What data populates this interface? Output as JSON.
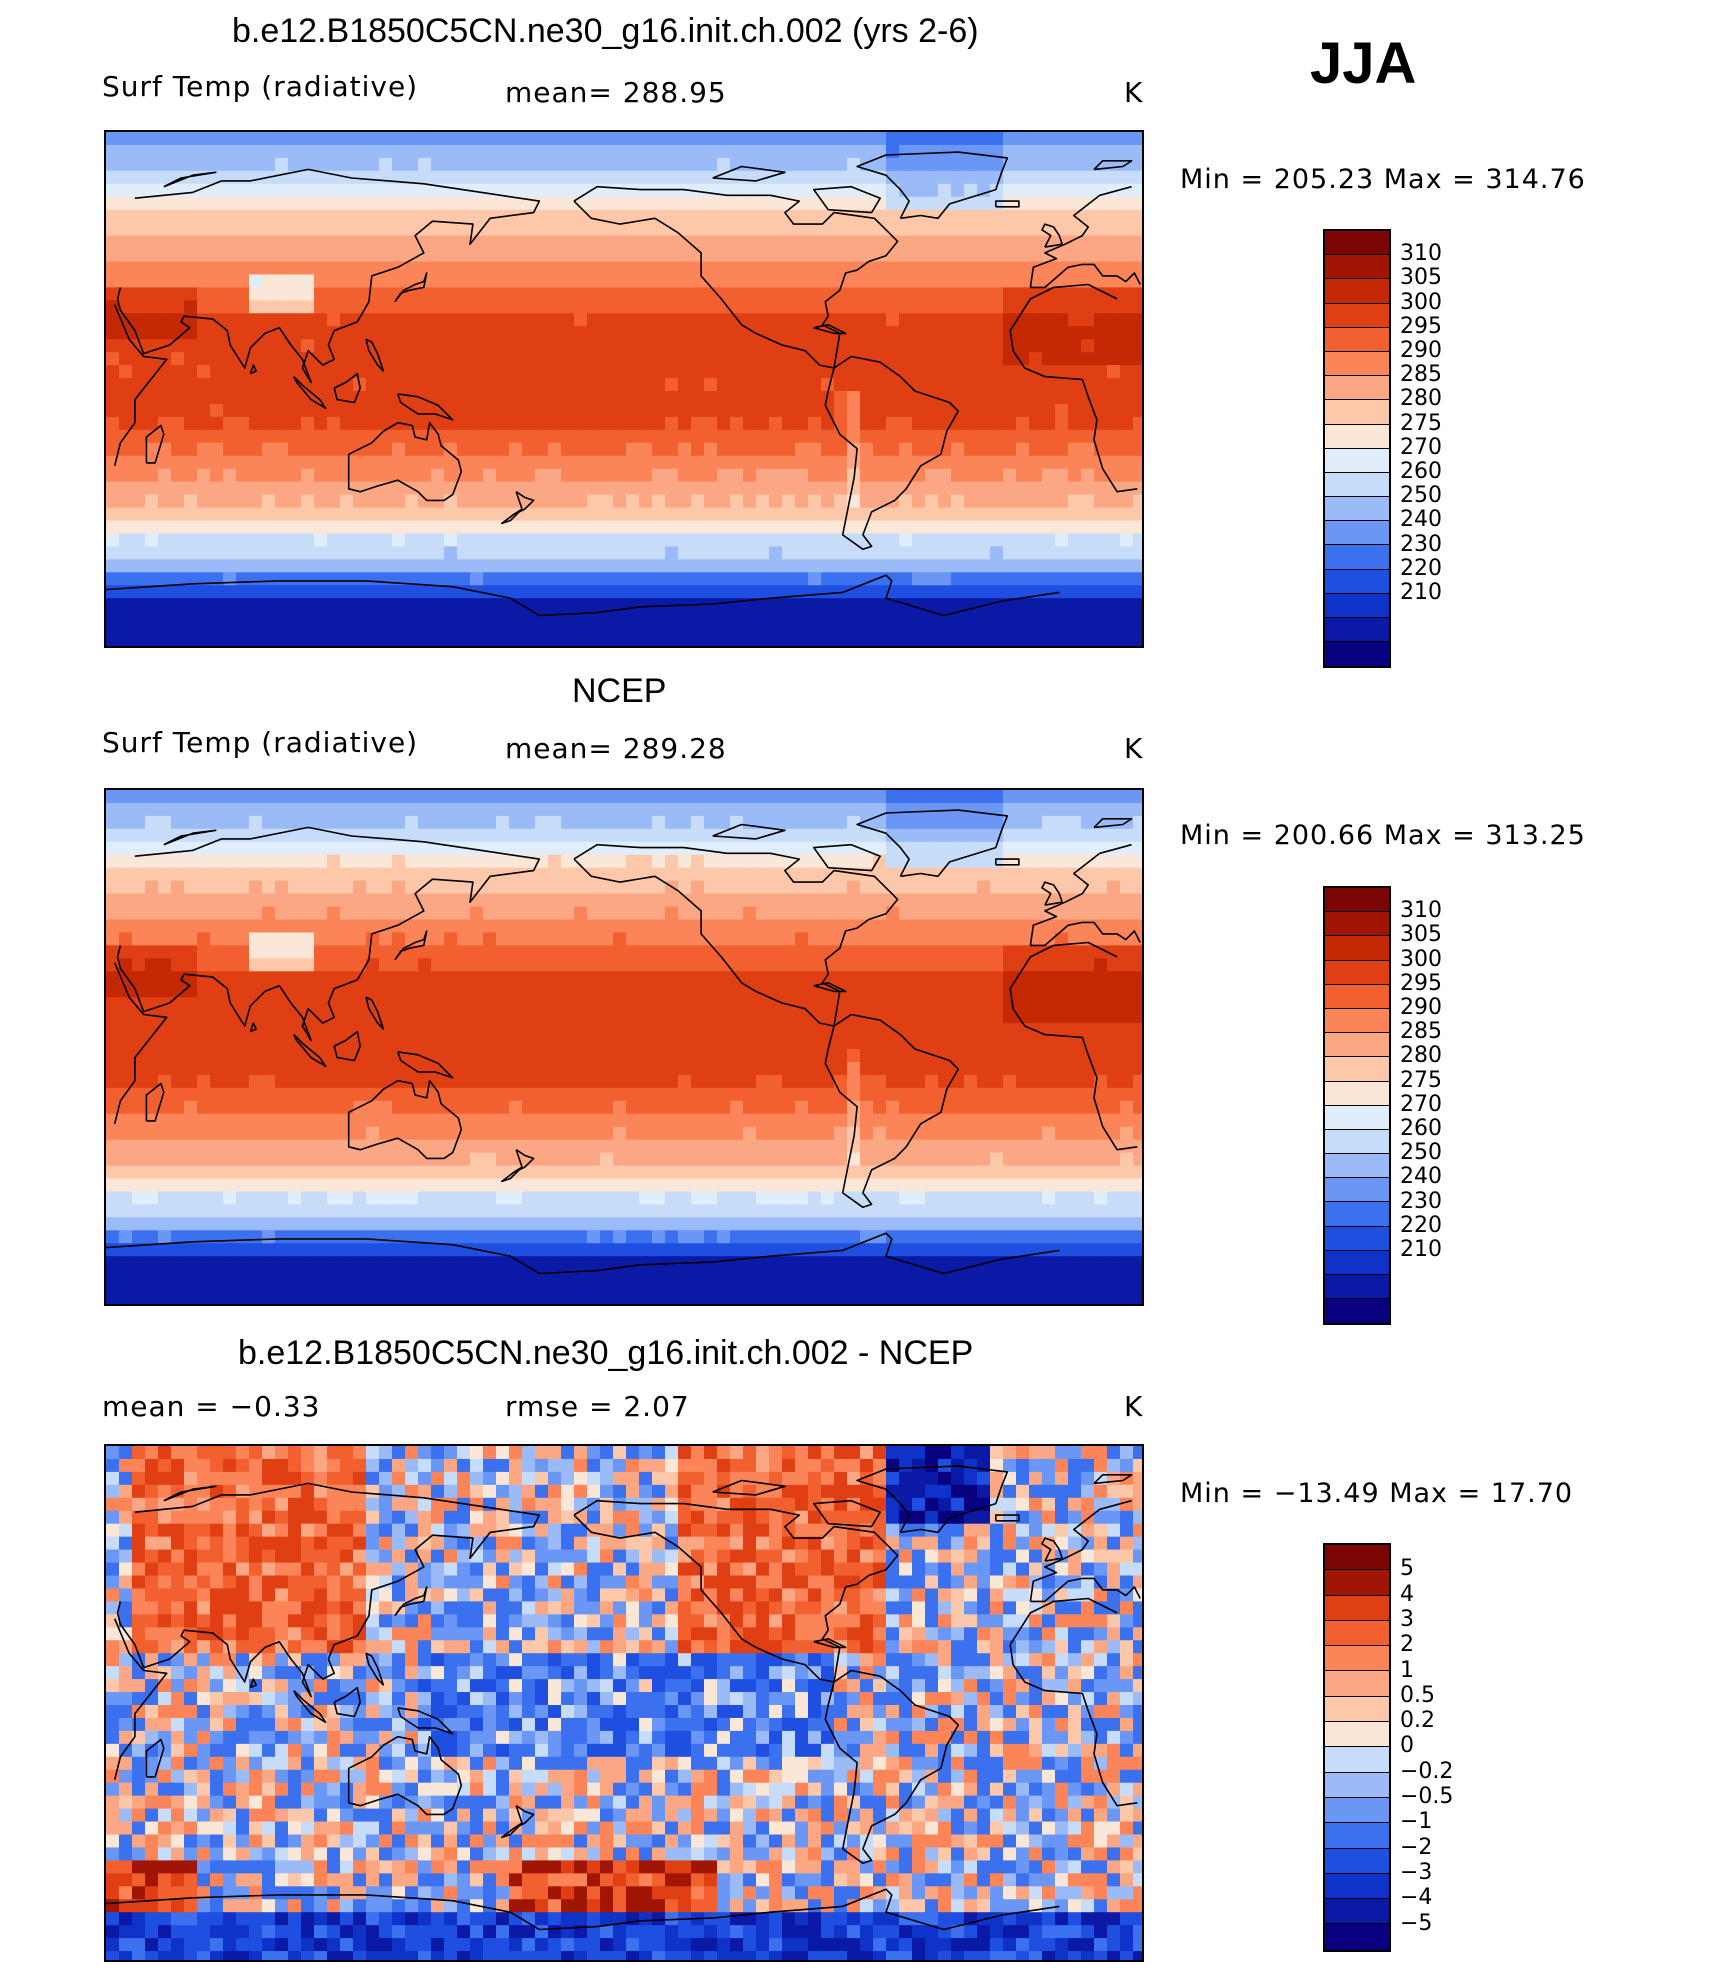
{
  "season": "JJA",
  "colormap": {
    "abs": [
      "#08007e",
      "#0b1aa6",
      "#0f33c8",
      "#1f4fe0",
      "#3b70ef",
      "#6a96f6",
      "#9bbaf8",
      "#c7dcf8",
      "#dfeefa",
      "#fbe7d8",
      "#fdc7aa",
      "#fca783",
      "#fb8558",
      "#f2602f",
      "#df3f12",
      "#c42805",
      "#a11504",
      "#7c0603"
    ],
    "diff": [
      "#08007e",
      "#0b1aa6",
      "#0f33c8",
      "#1f4fe0",
      "#3b70ef",
      "#6a96f6",
      "#9bbaf8",
      "#c7dcf8",
      "#fbe7d8",
      "#fdc7aa",
      "#fca783",
      "#fb8558",
      "#f2602f",
      "#df3f12",
      "#a11504",
      "#7c0603"
    ]
  },
  "panels": [
    {
      "title": "b.e12.B1850C5CN.ne30_g16.init.ch.002 (yrs 2-6)",
      "left_label": "Surf Temp (radiative)",
      "center_label": "mean=  288.95",
      "unit": "K",
      "minmax": "Min  =  205.23  Max  =  314.76",
      "colorbar_labels": [
        "310",
        "305",
        "300",
        "295",
        "290",
        "285",
        "280",
        "275",
        "270",
        "260",
        "250",
        "240",
        "230",
        "220",
        "210"
      ]
    },
    {
      "title": "NCEP",
      "left_label": "Surf Temp (radiative)",
      "center_label": "mean=  289.28",
      "unit": "K",
      "minmax": "Min  =  200.66  Max  =  313.25",
      "colorbar_labels": [
        "310",
        "305",
        "300",
        "295",
        "290",
        "285",
        "280",
        "275",
        "270",
        "260",
        "250",
        "240",
        "230",
        "220",
        "210"
      ]
    },
    {
      "title": "b.e12.B1850C5CN.ne30_g16.init.ch.002 - NCEP",
      "left_label": "mean  =     −0.33",
      "center_label": "rmse  =      2.07",
      "unit": "K",
      "minmax": "Min  =  −13.49  Max  =    17.70",
      "colorbar_labels": [
        "5",
        "4",
        "3",
        "2",
        "1",
        "0.5",
        "0.2",
        "0",
        "−0.2",
        "−0.5",
        "−1",
        "−2",
        "−3",
        "−4",
        "−5"
      ]
    }
  ],
  "chart_data": [
    {
      "type": "heatmap",
      "title": "b.e12.B1850C5CN.ne30_g16.init.ch.002 (yrs 2-6)",
      "variable": "Surf Temp (radiative)",
      "units": "K",
      "mean": 288.95,
      "min": 205.23,
      "max": 314.76,
      "contour_levels": [
        210,
        220,
        230,
        240,
        250,
        260,
        270,
        275,
        280,
        285,
        290,
        295,
        300,
        305,
        310
      ]
    },
    {
      "type": "heatmap",
      "title": "NCEP",
      "variable": "Surf Temp (radiative)",
      "units": "K",
      "mean": 289.28,
      "min": 200.66,
      "max": 313.25,
      "contour_levels": [
        210,
        220,
        230,
        240,
        250,
        260,
        270,
        275,
        280,
        285,
        290,
        295,
        300,
        305,
        310
      ]
    },
    {
      "type": "heatmap",
      "title": "b.e12.B1850C5CN.ne30_g16.init.ch.002 - NCEP",
      "units": "K",
      "mean": -0.33,
      "rmse": 2.07,
      "min": -13.49,
      "max": 17.7,
      "contour_levels": [
        -5,
        -4,
        -3,
        -2,
        -1,
        -0.5,
        -0.2,
        0,
        0.2,
        0.5,
        1,
        2,
        3,
        4,
        5
      ]
    }
  ]
}
